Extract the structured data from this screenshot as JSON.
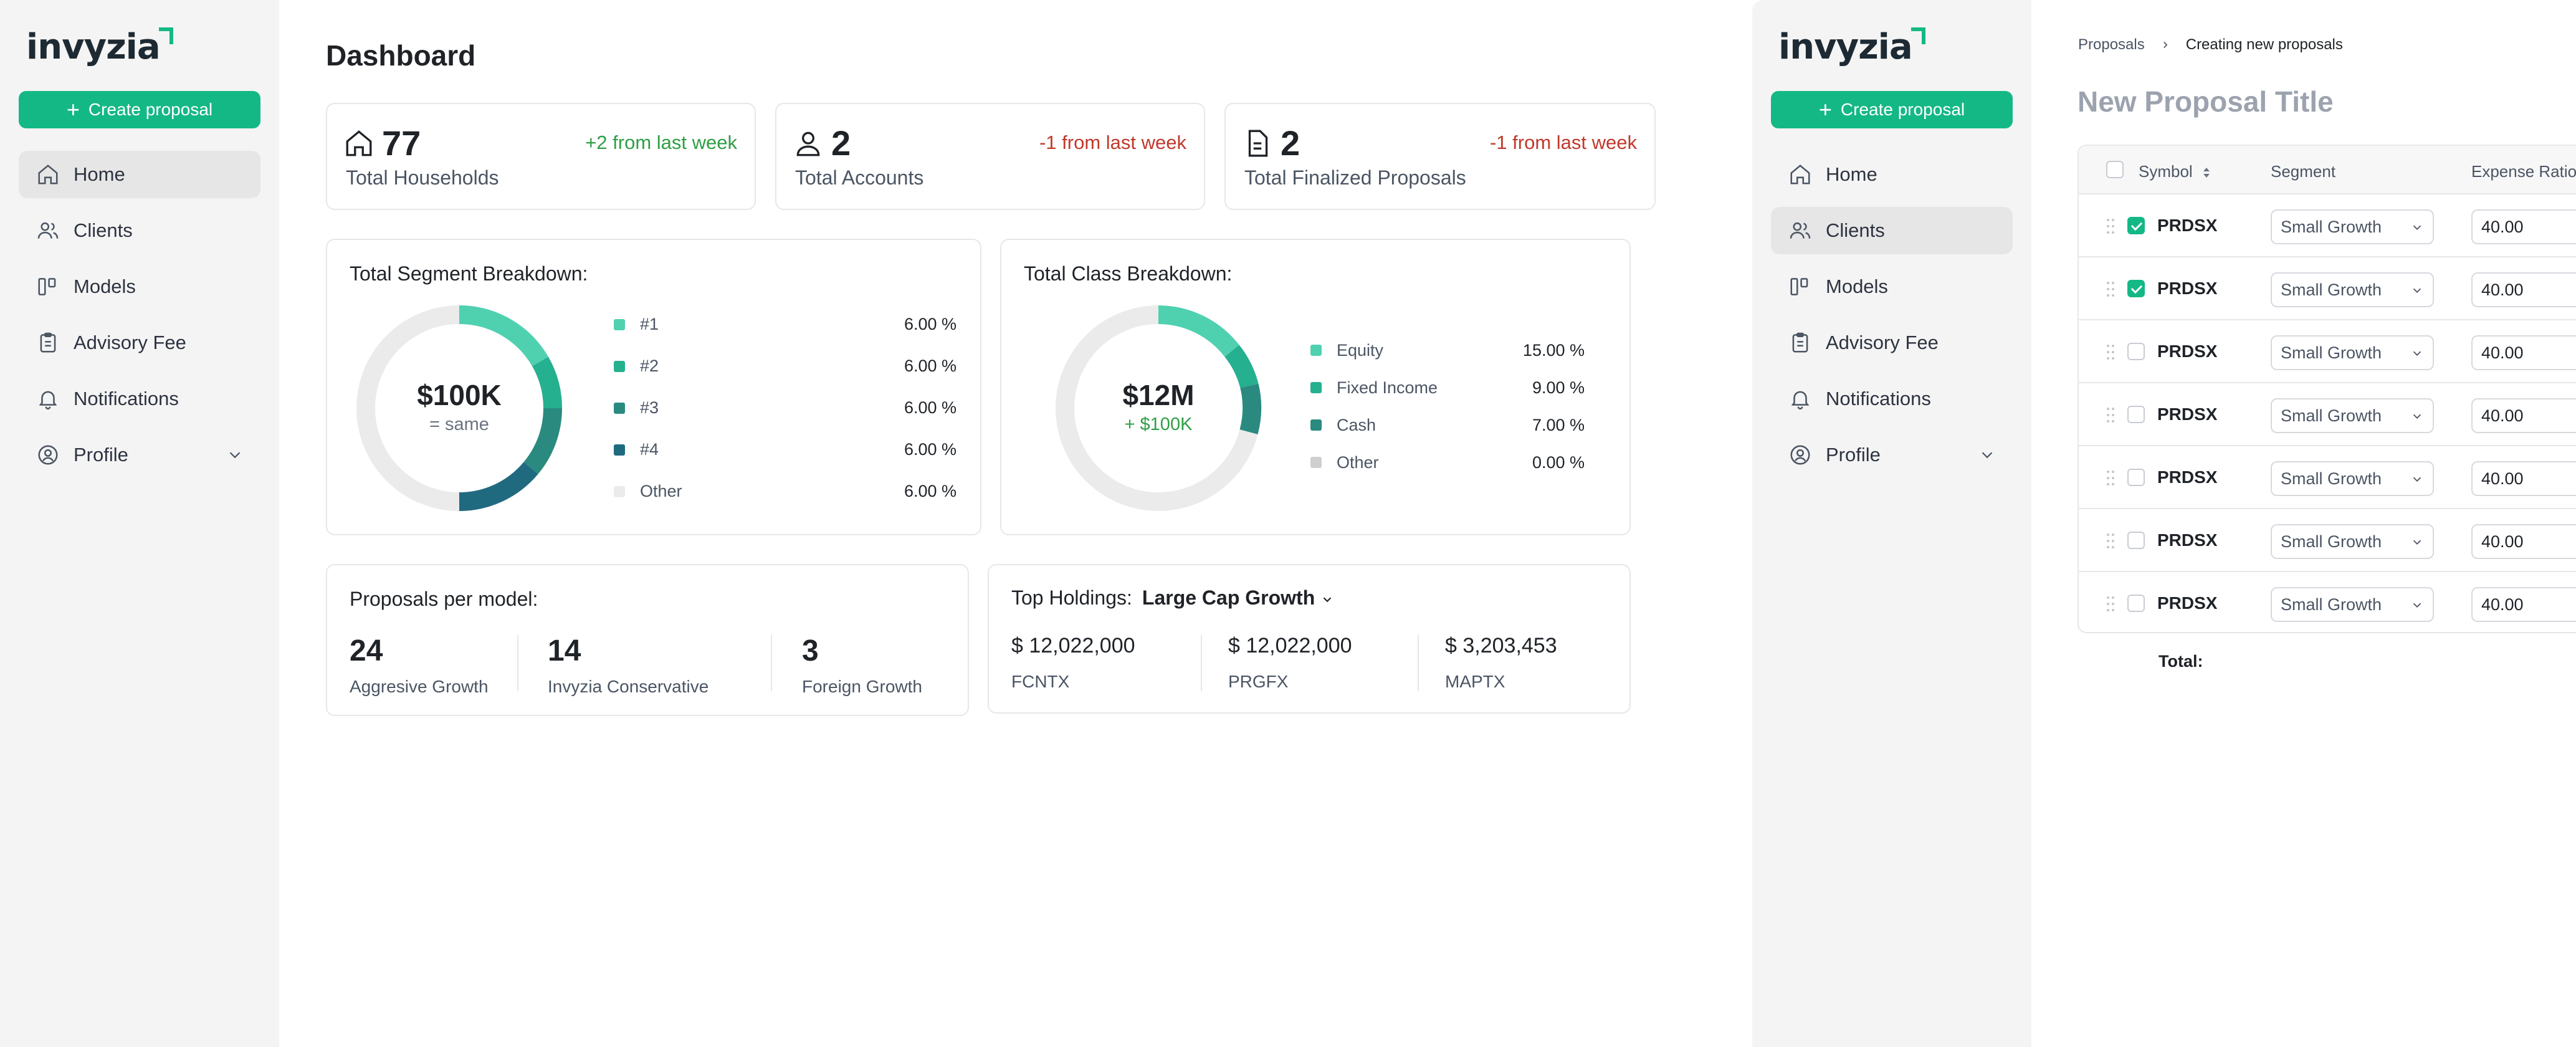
{
  "brand": {
    "name": "invyzia",
    "accent": "#14b885"
  },
  "sidebar": {
    "create_label": "Create proposal",
    "items": [
      {
        "label": "Home",
        "icon": "home-icon"
      },
      {
        "label": "Clients",
        "icon": "users-icon"
      },
      {
        "label": "Models",
        "icon": "models-icon"
      },
      {
        "label": "Advisory Fee",
        "icon": "clipboard-icon"
      },
      {
        "label": "Notifications",
        "icon": "bell-icon"
      },
      {
        "label": "Profile",
        "icon": "profile-icon"
      }
    ]
  },
  "dashboard": {
    "title": "Dashboard",
    "stats": [
      {
        "value": "77",
        "label": "Total Households",
        "change": "+2 from last week"
      },
      {
        "value": "2",
        "label": "Total Accounts",
        "change": "-1 from last week"
      },
      {
        "value": "2",
        "label": "Total Finalized Proposals",
        "change": "-1 from last week"
      }
    ],
    "segment": {
      "title": "Total Segment Breakdown:",
      "center_value": "$100K",
      "center_sub": "= same",
      "legend": [
        {
          "label": "#1",
          "value": "6.00 %",
          "color": "#4fd1b0"
        },
        {
          "label": "#2",
          "value": "6.00 %",
          "color": "#25b08f"
        },
        {
          "label": "#3",
          "value": "6.00 %",
          "color": "#2a8a80"
        },
        {
          "label": "#4",
          "value": "6.00 %",
          "color": "#206a80"
        },
        {
          "label": "Other",
          "value": "6.00 %",
          "color": "#ebebeb"
        }
      ]
    },
    "class": {
      "title": "Total Class Breakdown:",
      "center_value": "$12M",
      "center_sub": "+ $100K",
      "legend": [
        {
          "label": "Equity",
          "value": "15.00 %",
          "color": "#4fd1b0"
        },
        {
          "label": "Fixed Income",
          "value": "9.00 %",
          "color": "#25b08f"
        },
        {
          "label": "Cash",
          "value": "7.00 %",
          "color": "#2a8a80"
        },
        {
          "label": "Other",
          "value": "0.00 %",
          "color": "#cfcfcf"
        }
      ]
    },
    "proposals_per_model": {
      "title": "Proposals per model:",
      "items": [
        {
          "value": "24",
          "label": "Aggresive Growth"
        },
        {
          "value": "14",
          "label": "Invyzia Conservative"
        },
        {
          "value": "3",
          "label": "Foreign Growth"
        }
      ]
    },
    "top_holdings": {
      "title": "Top Holdings:",
      "model": "Large Cap Growth",
      "items": [
        {
          "value": "$ 12,022,000",
          "symbol": "FCNTX"
        },
        {
          "value": "$ 12,022,000",
          "symbol": "PRGFX"
        },
        {
          "value": "$ 3,203,453",
          "symbol": "MAPTX"
        }
      ]
    }
  },
  "proposal": {
    "breadcrumb": [
      "Proposals",
      "Creating new proposals"
    ],
    "title": "New Proposal Title",
    "columns": {
      "symbol": "Symbol",
      "segment": "Segment",
      "expense": "Expense Ratio"
    },
    "rows": [
      {
        "checked": true,
        "symbol": "PRDSX",
        "segment": "Small Growth",
        "expense": "40.00"
      },
      {
        "checked": true,
        "symbol": "PRDSX",
        "segment": "Small Growth",
        "expense": "40.00"
      },
      {
        "checked": false,
        "symbol": "PRDSX",
        "segment": "Small Growth",
        "expense": "40.00"
      },
      {
        "checked": false,
        "symbol": "PRDSX",
        "segment": "Small Growth",
        "expense": "40.00"
      },
      {
        "checked": false,
        "symbol": "PRDSX",
        "segment": "Small Growth",
        "expense": "40.00"
      },
      {
        "checked": false,
        "symbol": "PRDSX",
        "segment": "Small Growth",
        "expense": "40.00"
      },
      {
        "checked": false,
        "symbol": "PRDSX",
        "segment": "Small Growth",
        "expense": "40.00"
      }
    ],
    "total_label": "Total:"
  }
}
